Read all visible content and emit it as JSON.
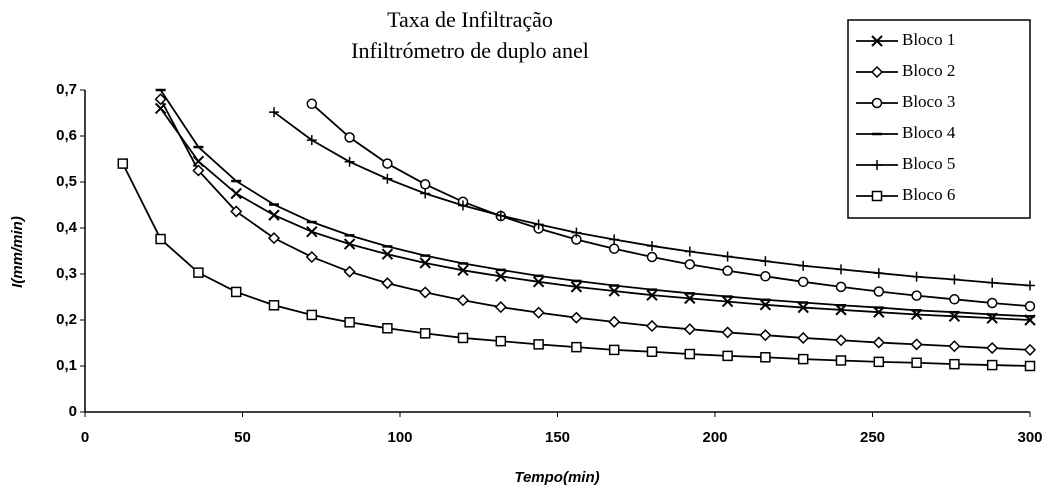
{
  "chart_data": {
    "type": "line",
    "title": "Taxa de Infiltração",
    "subtitle": "Infiltrómetro de duplo anel",
    "x_label": "Tempo(min)",
    "y_label": "I(mm/min)",
    "x": [
      12,
      24,
      36,
      48,
      60,
      72,
      84,
      96,
      108,
      120,
      132,
      144,
      156,
      168,
      180,
      192,
      204,
      216,
      228,
      240,
      252,
      264,
      276,
      288,
      300
    ],
    "series": [
      {
        "name": "Bloco 1",
        "color": "#000000",
        "marker": "x",
        "values": [
          null,
          0.66,
          0.545,
          0.475,
          0.428,
          0.392,
          0.365,
          0.343,
          0.324,
          0.308,
          0.295,
          0.283,
          0.272,
          0.263,
          0.254,
          0.247,
          0.24,
          0.233,
          0.227,
          0.222,
          0.217,
          0.212,
          0.208,
          0.204,
          0.2
        ]
      },
      {
        "name": "Bloco 2",
        "color": "#000000",
        "marker": "diamond",
        "values": [
          null,
          0.68,
          0.525,
          0.436,
          0.378,
          0.337,
          0.305,
          0.28,
          0.26,
          0.243,
          0.228,
          0.216,
          0.205,
          0.196,
          0.187,
          0.18,
          0.173,
          0.167,
          0.161,
          0.156,
          0.151,
          0.147,
          0.143,
          0.139,
          0.135
        ]
      },
      {
        "name": "Bloco 3",
        "color": "#000000",
        "marker": "circle",
        "values": [
          null,
          null,
          null,
          null,
          null,
          0.67,
          0.597,
          0.54,
          0.495,
          0.457,
          0.426,
          0.399,
          0.375,
          0.355,
          0.337,
          0.321,
          0.307,
          0.295,
          0.283,
          0.272,
          0.262,
          0.253,
          0.245,
          0.237,
          0.23
        ]
      },
      {
        "name": "Bloco 4",
        "color": "#000000",
        "marker": "dash",
        "values": [
          null,
          0.7,
          0.576,
          0.502,
          0.451,
          0.413,
          0.384,
          0.36,
          0.34,
          0.323,
          0.309,
          0.296,
          0.285,
          0.275,
          0.266,
          0.258,
          0.251,
          0.244,
          0.238,
          0.232,
          0.227,
          0.221,
          0.217,
          0.212,
          0.208
        ]
      },
      {
        "name": "Bloco 5",
        "color": "#000000",
        "marker": "plus",
        "values": [
          null,
          null,
          null,
          null,
          0.652,
          0.591,
          0.544,
          0.507,
          0.475,
          0.449,
          0.427,
          0.408,
          0.39,
          0.375,
          0.361,
          0.349,
          0.338,
          0.328,
          0.318,
          0.31,
          0.302,
          0.294,
          0.288,
          0.281,
          0.275
        ]
      },
      {
        "name": "Bloco 6",
        "color": "#000000",
        "marker": "square",
        "values": [
          0.54,
          0.376,
          0.303,
          0.261,
          0.232,
          0.211,
          0.195,
          0.182,
          0.171,
          0.161,
          0.154,
          0.147,
          0.141,
          0.135,
          0.131,
          0.126,
          0.122,
          0.119,
          0.115,
          0.112,
          0.109,
          0.107,
          0.104,
          0.102,
          0.1
        ]
      }
    ],
    "xlim": [
      0,
      300
    ],
    "xticks": [
      0,
      50,
      100,
      150,
      200,
      250,
      300
    ],
    "ylim": [
      0,
      0.7
    ],
    "yticks": [
      0,
      {
        "value": 0.1,
        "label": "0,1"
      },
      {
        "value": 0.2,
        "label": "0,2"
      },
      {
        "value": 0.3,
        "label": "0,3"
      },
      {
        "value": 0.4,
        "label": "0,4"
      },
      {
        "value": 0.5,
        "label": "0,5"
      },
      {
        "value": 0.6,
        "label": "0,6"
      },
      {
        "value": 0.7,
        "label": "0,7"
      }
    ],
    "grid": false,
    "legend": "top-right"
  }
}
